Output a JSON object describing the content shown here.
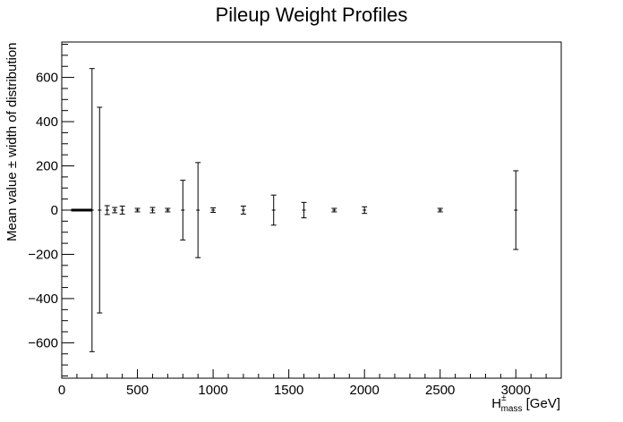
{
  "chart_data": {
    "type": "scatter",
    "title": "Pileup Weight Profiles",
    "xlabel": "H^{±}_{mass} [GeV]",
    "xlabel_parts": {
      "base": "H",
      "sup": "±",
      "sub": "mass",
      "unit": " [GeV]"
    },
    "ylabel": "Mean value ± width of distribution",
    "xlim": [
      0,
      3300
    ],
    "ylim": [
      -760,
      760
    ],
    "x_ticks": [
      0,
      500,
      1000,
      1500,
      2000,
      2500,
      3000
    ],
    "x_tick_labels": [
      "0",
      "500",
      "1000",
      "1500",
      "2000",
      "2500",
      "3000"
    ],
    "y_ticks": [
      -600,
      -400,
      -200,
      0,
      200,
      400,
      600
    ],
    "y_tick_labels": [
      "−600",
      "−400",
      "−200",
      "0",
      "200",
      "400",
      "600"
    ],
    "grid": false,
    "legend": "none",
    "series": [
      {
        "points": [
          {
            "x": 80,
            "y": 0,
            "err": 4
          },
          {
            "x": 90,
            "y": 0,
            "err": 4
          },
          {
            "x": 100,
            "y": 0,
            "err": 4
          },
          {
            "x": 110,
            "y": 0,
            "err": 4
          },
          {
            "x": 120,
            "y": 0,
            "err": 4
          },
          {
            "x": 130,
            "y": 0,
            "err": 4
          },
          {
            "x": 140,
            "y": 0,
            "err": 4
          },
          {
            "x": 150,
            "y": 0,
            "err": 4
          },
          {
            "x": 160,
            "y": 0,
            "err": 4
          },
          {
            "x": 180,
            "y": 0,
            "err": 4
          },
          {
            "x": 200,
            "y": 0,
            "err": 640
          },
          {
            "x": 250,
            "y": 0,
            "err": 465
          },
          {
            "x": 300,
            "y": 0,
            "err": 20
          },
          {
            "x": 350,
            "y": 0,
            "err": 12
          },
          {
            "x": 400,
            "y": 0,
            "err": 18
          },
          {
            "x": 500,
            "y": 0,
            "err": 8
          },
          {
            "x": 600,
            "y": 0,
            "err": 12
          },
          {
            "x": 700,
            "y": 0,
            "err": 8
          },
          {
            "x": 800,
            "y": 0,
            "err": 135
          },
          {
            "x": 900,
            "y": 0,
            "err": 215
          },
          {
            "x": 1000,
            "y": 0,
            "err": 10
          },
          {
            "x": 1200,
            "y": 0,
            "err": 18
          },
          {
            "x": 1400,
            "y": 0,
            "err": 68
          },
          {
            "x": 1600,
            "y": 0,
            "err": 35
          },
          {
            "x": 1800,
            "y": 0,
            "err": 8
          },
          {
            "x": 2000,
            "y": 0,
            "err": 15
          },
          {
            "x": 2500,
            "y": 0,
            "err": 8
          },
          {
            "x": 3000,
            "y": 0,
            "err": 178
          }
        ]
      }
    ]
  }
}
